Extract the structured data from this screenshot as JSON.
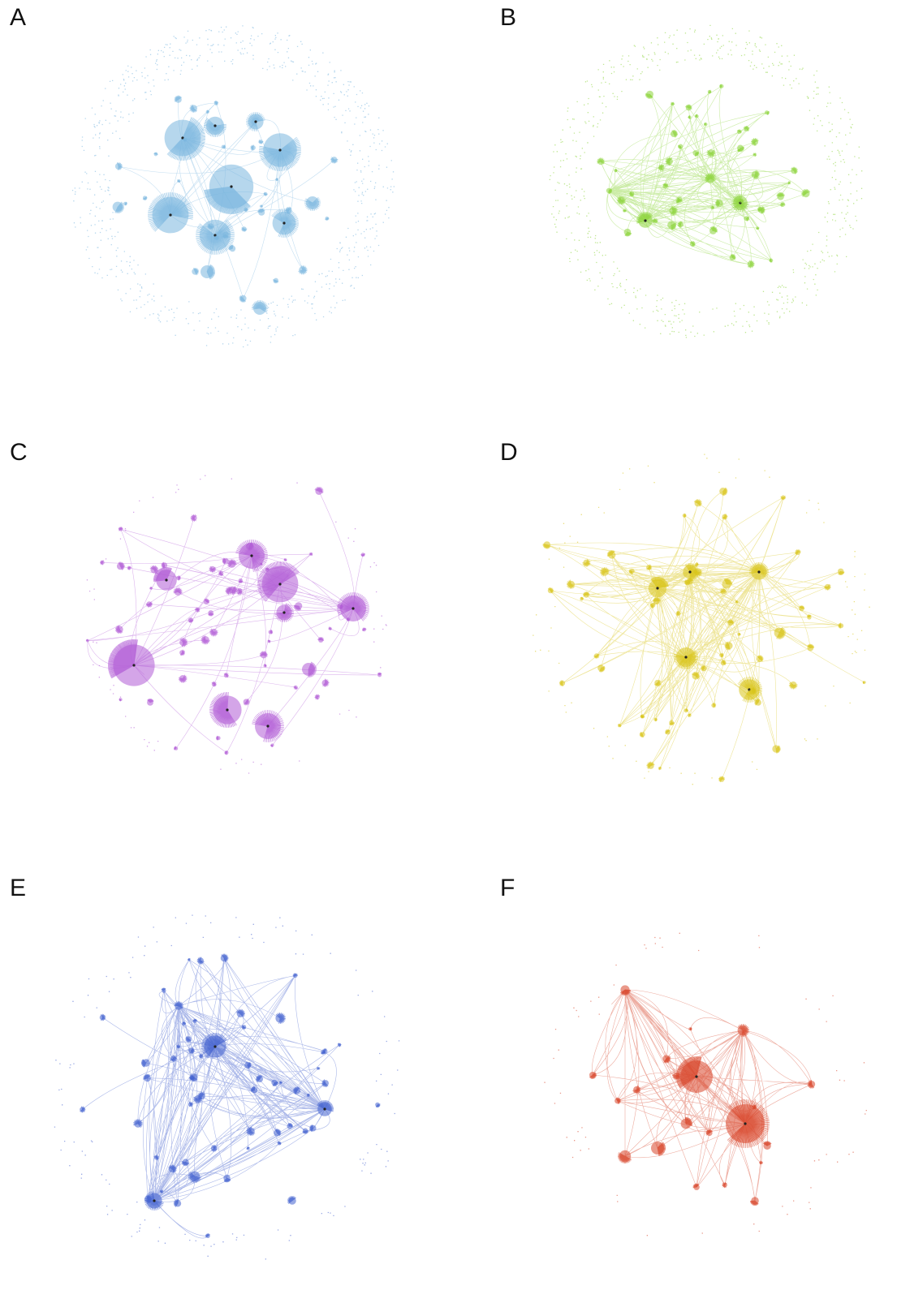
{
  "panels": [
    {
      "label": "A",
      "color": "#7ab6df"
    },
    {
      "label": "B",
      "color": "#8cd43a"
    },
    {
      "label": "C",
      "color": "#b15bd6"
    },
    {
      "label": "D",
      "color": "#d9c51a"
    },
    {
      "label": "E",
      "color": "#4462cf"
    },
    {
      "label": "F",
      "color": "#d8452a"
    }
  ]
}
